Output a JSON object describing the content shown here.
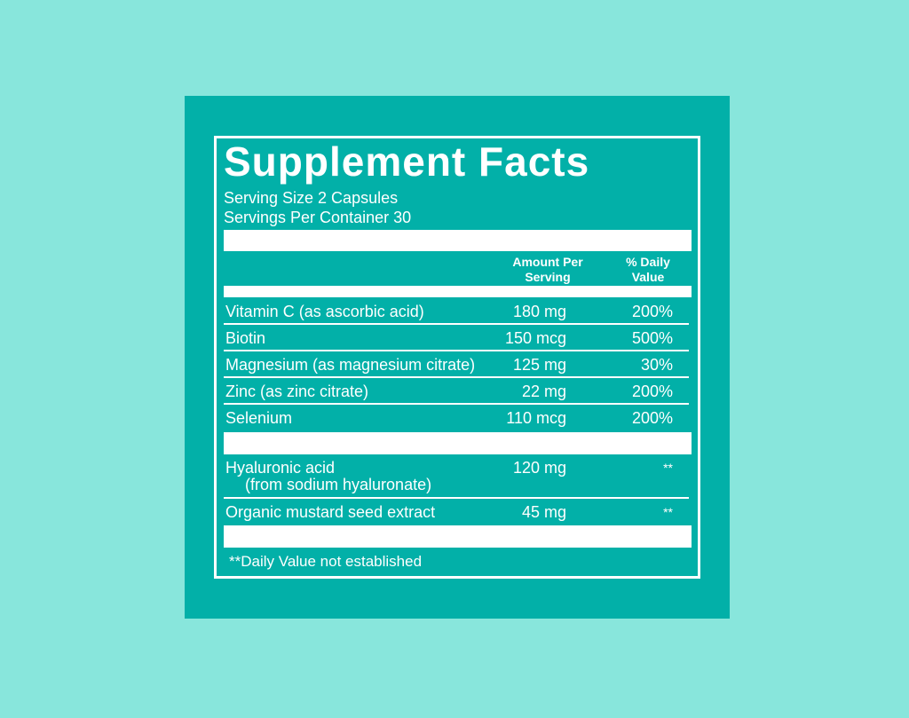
{
  "label": {
    "title": "Supplement Facts",
    "serving_size": "Serving Size 2 Capsules",
    "servings_per_container": "Servings Per Container 30",
    "headers": {
      "amount_line1": "Amount Per",
      "amount_line2": "Serving",
      "dv_line1": "% Daily",
      "dv_line2": "Value"
    },
    "nutrients": [
      {
        "name": "Vitamin C (as ascorbic acid)",
        "amount": "180 mg",
        "dv": "200%"
      },
      {
        "name": "Biotin",
        "amount": "150 mcg",
        "dv": "500%"
      },
      {
        "name": "Magnesium (as magnesium citrate)",
        "amount": "125 mg",
        "dv": "30%"
      },
      {
        "name": "Zinc (as zinc citrate)",
        "amount": "22 mg",
        "dv": "200%"
      },
      {
        "name": "Selenium",
        "amount": "110 mcg",
        "dv": "200%"
      }
    ],
    "other": [
      {
        "name": "Hyaluronic acid",
        "name_sub": "(from sodium hyaluronate)",
        "amount": "120 mg",
        "dv": "**"
      },
      {
        "name": "Organic mustard seed extract",
        "amount": "45 mg",
        "dv": "**"
      }
    ],
    "footnote": "**Daily Value not established"
  },
  "colors": {
    "background": "#88e6dc",
    "panel": "#02b0a8",
    "text": "#ffffff"
  }
}
